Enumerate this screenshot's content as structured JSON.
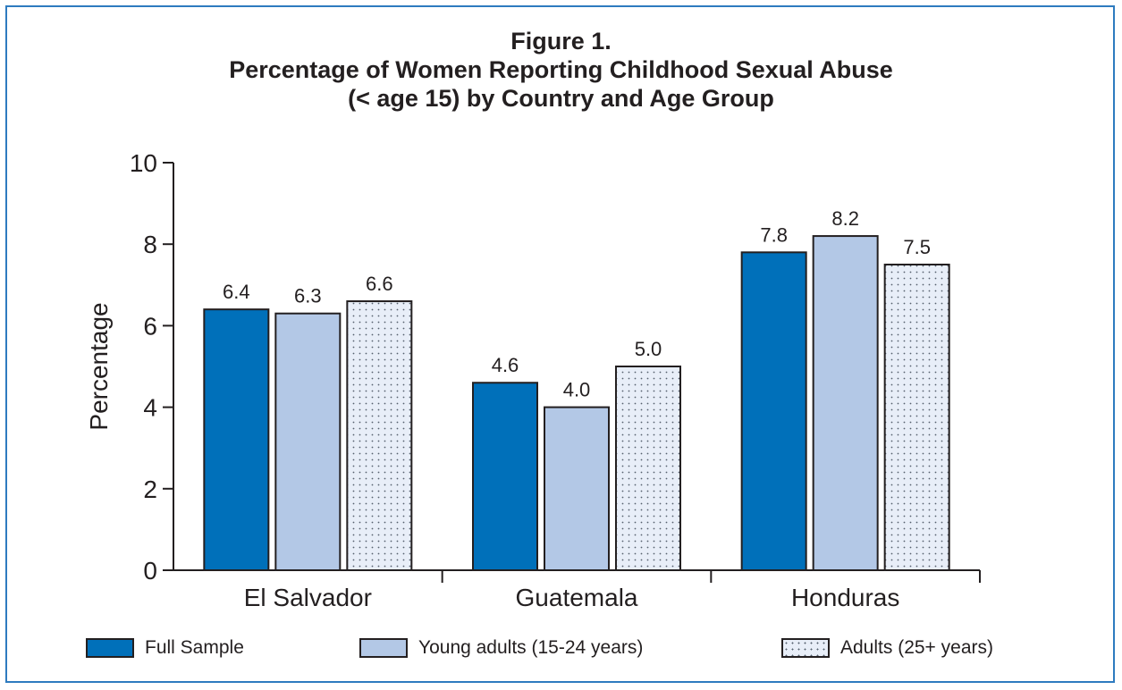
{
  "chart_data": {
    "type": "bar",
    "title_lines": [
      "Figure 1.",
      "Percentage of Women Reporting Childhood Sexual Abuse",
      "(< age 15) by Country and Age Group"
    ],
    "ylabel": "Percentage",
    "xlabel": "",
    "ylim": [
      0,
      10
    ],
    "yticks": [
      0,
      2,
      4,
      6,
      8,
      10
    ],
    "categories": [
      "El Salvador",
      "Guatemala",
      "Honduras"
    ],
    "series": [
      {
        "name": "Full Sample",
        "values": [
          6.4,
          4.6,
          7.8
        ],
        "value_labels": [
          "6.4",
          "4.6",
          "7.8"
        ],
        "color": "#0070ba",
        "pattern": "solid"
      },
      {
        "name": "Young adults (15-24 years)",
        "values": [
          6.3,
          4.0,
          8.2
        ],
        "value_labels": [
          "6.3",
          "4.0",
          "8.2"
        ],
        "color": "#b3c8e6",
        "pattern": "solid"
      },
      {
        "name": "Adults (25+ years)",
        "values": [
          6.6,
          5.0,
          7.5
        ],
        "value_labels": [
          "6.6",
          "5.0",
          "7.5"
        ],
        "color": "#e8eef8",
        "pattern": "dots"
      }
    ],
    "grid": false,
    "legend": "bottom"
  }
}
